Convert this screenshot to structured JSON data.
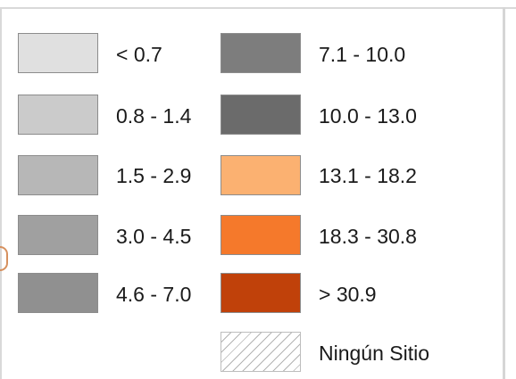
{
  "legend": {
    "items": [
      {
        "label": "< 0.7",
        "color": "#e0e0e0"
      },
      {
        "label": "0.8 - 1.4",
        "color": "#cbcbcb"
      },
      {
        "label": "1.5 - 2.9",
        "color": "#b7b7b7"
      },
      {
        "label": "3.0 - 4.5",
        "color": "#a0a0a0"
      },
      {
        "label": "4.6 - 7.0",
        "color": "#909090"
      },
      {
        "label": "7.1 - 10.0",
        "color": "#7d7d7d"
      },
      {
        "label": "10.0 - 13.0",
        "color": "#6b6b6b"
      },
      {
        "label": "13.1 - 18.2",
        "color": "#fbb171"
      },
      {
        "label": "18.3 - 30.8",
        "color": "#f5792b"
      },
      {
        "label": "> 30.9",
        "color": "#c0410a"
      }
    ],
    "no_site": {
      "label": "Ningún Sitio",
      "pattern": "diagonal-hatch"
    }
  }
}
